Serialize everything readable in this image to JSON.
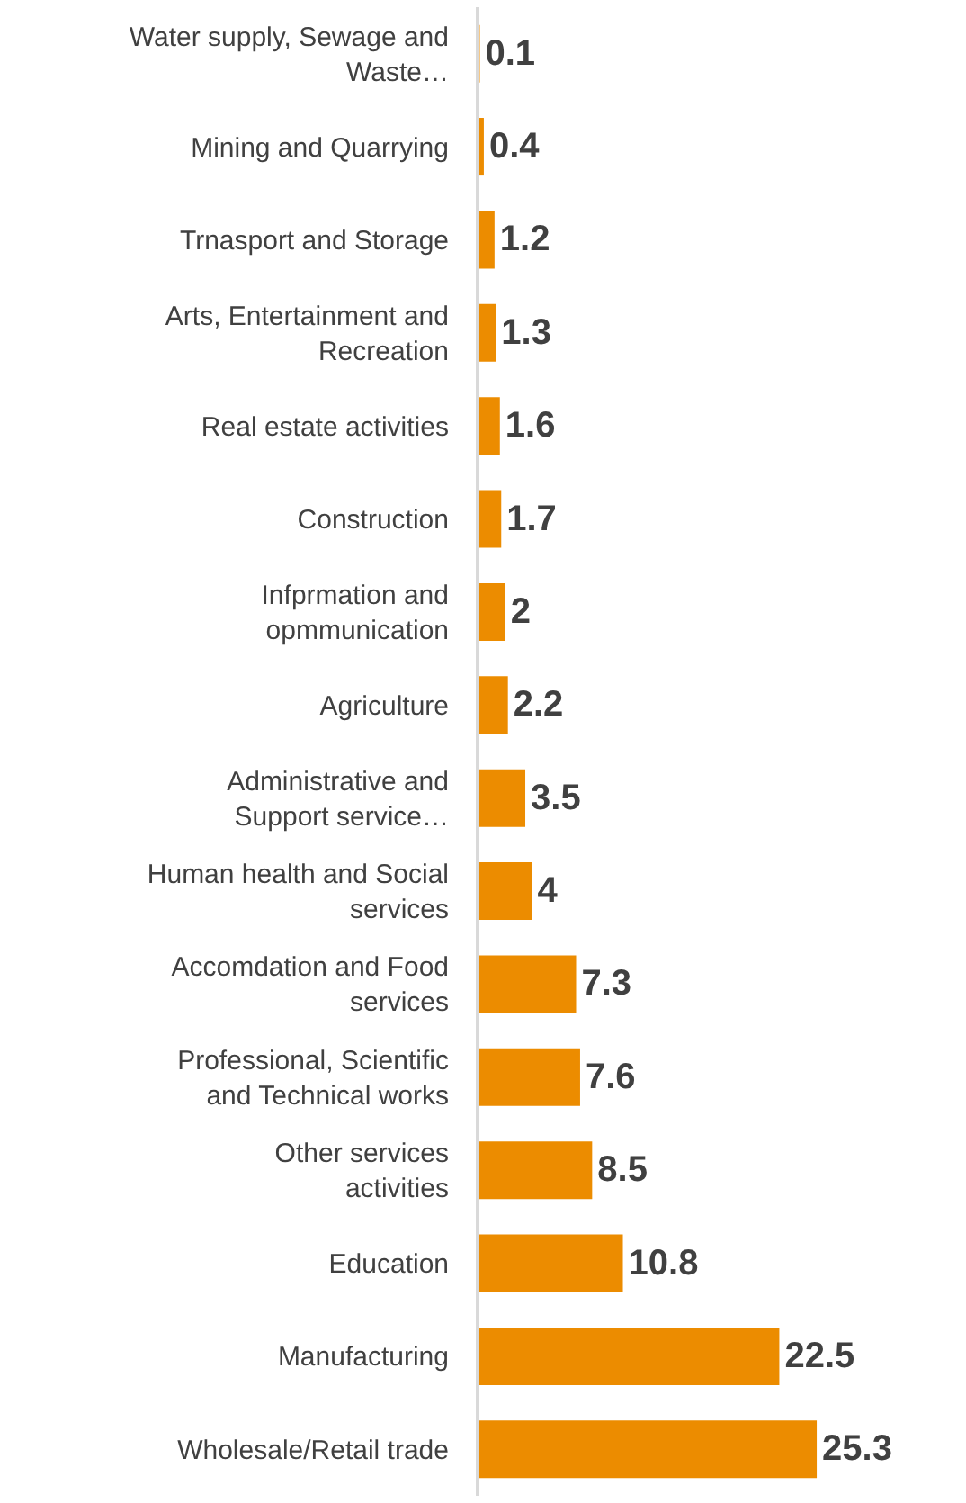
{
  "chart_data": {
    "type": "bar",
    "orientation": "horizontal",
    "categories": [
      "Water supply, Sewage and Waste…",
      "Mining and Quarrying",
      "Trnasport and Storage",
      "Arts, Entertainment and Recreation",
      "Real estate activities",
      "Construction",
      "Infprmation and opmmunication",
      "Agriculture",
      "Administrative and Support service…",
      "Human health and Social services",
      "Accomdation and Food services",
      "Professional, Scientific and Technical works",
      "Other services activities",
      "Education",
      "Manufacturing",
      "Wholesale/Retail trade"
    ],
    "values": [
      0.1,
      0.4,
      1.2,
      1.3,
      1.6,
      1.7,
      2,
      2.2,
      3.5,
      4,
      7.3,
      7.6,
      8.5,
      10.8,
      22.5,
      25.3
    ],
    "color": "#ec8c00",
    "data_labels": true
  }
}
